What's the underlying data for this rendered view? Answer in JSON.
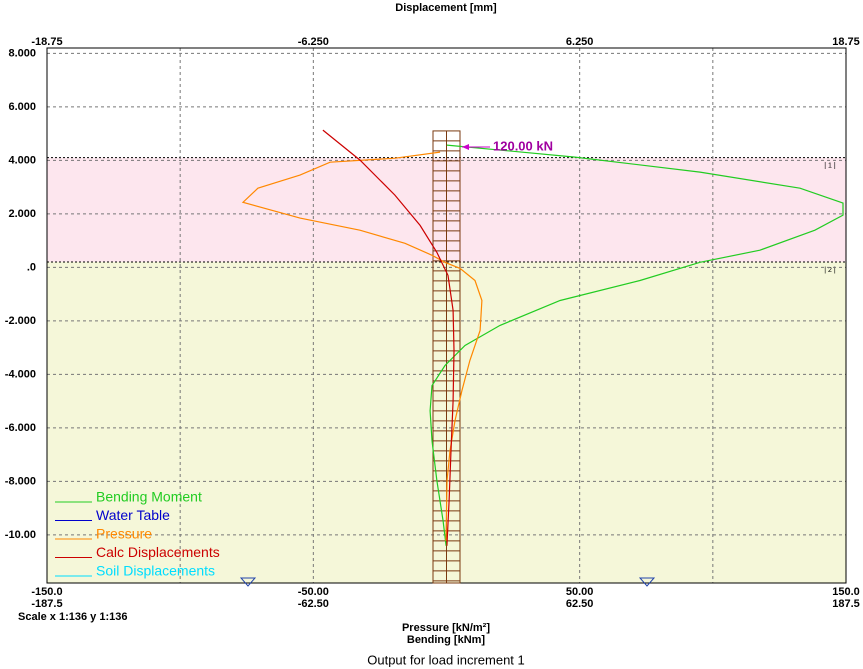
{
  "chart_data": {
    "type": "line",
    "title": "Output for load increment 1",
    "scale_note": "Scale x 1:136  y 1:136",
    "ylim": [
      -11.8,
      8.2
    ],
    "yticks": [
      {
        "value": 8,
        "label": "8.000"
      },
      {
        "value": 6,
        "label": "6.000"
      },
      {
        "value": 4,
        "label": "4.000"
      },
      {
        "value": 2,
        "label": "2.000"
      },
      {
        "value": 0,
        "label": ".0"
      },
      {
        "value": -2,
        "label": "-2.000"
      },
      {
        "value": -4,
        "label": "-4.000"
      },
      {
        "value": -6,
        "label": "-6.000"
      },
      {
        "value": -8,
        "label": "-8.000"
      },
      {
        "value": -10,
        "label": "-10.00"
      }
    ],
    "grid": true,
    "axes": {
      "displacement": {
        "label": "Displacement [mm]",
        "xlim": [
          -18.75,
          18.75
        ],
        "xticks": [
          -18.75,
          {
            "value": -6.25,
            "label": "-6.250"
          },
          {
            "value": 6.25,
            "label": "6.250"
          },
          18.75
        ]
      },
      "pressure": {
        "label": "Pressure [kN/m²]",
        "xlim": [
          -150,
          150
        ],
        "xticks": [
          {
            "value": -150,
            "label": "-150.0"
          },
          {
            "value": -50,
            "label": "-50.00"
          },
          {
            "value": 50,
            "label": "50.00"
          },
          {
            "value": 150,
            "label": "150.0"
          }
        ],
        "xgrid": [
          -100,
          -50,
          50,
          100
        ]
      },
      "bending": {
        "label": "Bending [kNm]",
        "xlim": [
          -187.5,
          187.5
        ],
        "xticks": [
          {
            "value": -187.5,
            "label": "-187.5"
          },
          {
            "value": -62.5,
            "label": "-62.50"
          },
          {
            "value": 62.5,
            "label": "62.50"
          },
          {
            "value": 187.5,
            "label": "187.5"
          }
        ]
      }
    },
    "layers": [
      {
        "label": "| 1 |",
        "top": 4.1,
        "bottom": 0.2,
        "color": "#fde6ee"
      },
      {
        "label": "| 2 |",
        "top": 0.2,
        "bottom": -11.8,
        "color": "#f5f7d9"
      }
    ],
    "wall_top": 5.1,
    "load": {
      "label": "120.00 kN",
      "depth": 4.5
    },
    "series": [
      {
        "name": "Bending Moment",
        "color": "#22cc22",
        "axis": "bending",
        "x": [
          0.2,
          60.3,
          119.0,
          165.9,
          186.1,
          186.1,
          172.9,
          147.1,
          119.0,
          90.8,
          53.3,
          25.1,
          8.7,
          -0.7,
          -6.8,
          -7.7,
          -6.8,
          -4.5,
          -1.6,
          -0.2
        ],
        "values": [
          4.57,
          4.12,
          3.56,
          2.96,
          2.4,
          1.95,
          1.39,
          0.64,
          0.19,
          -0.49,
          -1.24,
          -2.17,
          -2.92,
          -3.67,
          -4.42,
          -5.36,
          -6.48,
          -7.98,
          -9.48,
          -10.41
        ]
      },
      {
        "name": "Water Table",
        "color": "#0000cc",
        "axis": "pressure",
        "x": [],
        "values": []
      },
      {
        "name": "Pressure",
        "color": "#ff8800",
        "axis": "pressure",
        "x": [
          -2.4,
          -19.3,
          -43.7,
          -55.0,
          -70.8,
          -76.4,
          -55.0,
          -32.5,
          -15.6,
          -5.4,
          -0.6,
          5.1,
          10.7,
          13.3,
          12.6,
          8.8,
          5.8,
          3.2,
          1.3,
          0.2,
          -0.2
        ],
        "values": [
          4.31,
          4.08,
          3.93,
          3.45,
          2.96,
          2.43,
          1.84,
          1.39,
          0.9,
          0.45,
          0.19,
          -0.04,
          -0.49,
          -1.24,
          -2.36,
          -3.48,
          -4.61,
          -5.73,
          -6.85,
          -7.98,
          -10.22
        ]
      },
      {
        "name": "Calc Displacements",
        "color": "#cc0000",
        "axis": "displacement",
        "x": [
          -5.8,
          -4.06,
          -2.42,
          -1.24,
          -0.45,
          0.07,
          0.31,
          0.35,
          0.31,
          0.21,
          0.12,
          0.02
        ],
        "values": [
          5.13,
          4.01,
          2.7,
          1.57,
          0.56,
          -0.3,
          -1.61,
          -3.11,
          -4.98,
          -6.85,
          -8.73,
          -10.41
        ]
      },
      {
        "name": "Soil Displacements",
        "color": "#00ddff",
        "axis": "displacement",
        "x": [],
        "values": []
      }
    ]
  }
}
